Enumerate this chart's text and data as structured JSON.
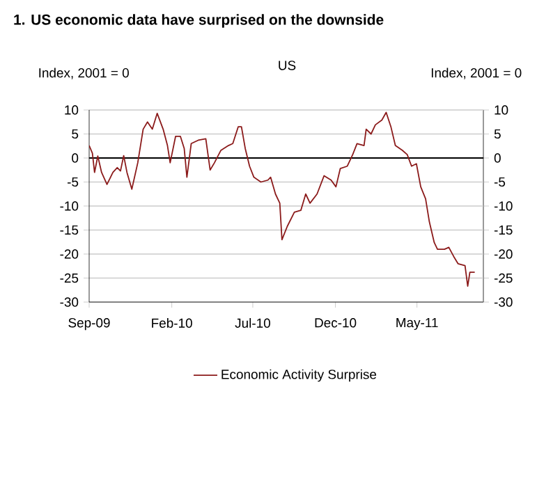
{
  "chart_data": {
    "type": "line",
    "title": "1. US economic data have surprised on the downside",
    "subtitle": "US",
    "ylabel": "Index, 2001 = 0",
    "y2label": "Index, 2001 = 0",
    "x": [
      "2009-09-01",
      "2009-09-07",
      "2009-09-11",
      "2009-09-17",
      "2009-09-24",
      "2009-10-04",
      "2009-10-15",
      "2009-10-23",
      "2009-10-29",
      "2009-11-04",
      "2009-11-10",
      "2009-11-19",
      "2009-11-30",
      "2009-12-10",
      "2009-12-18",
      "2009-12-27",
      "2010-01-05",
      "2010-01-16",
      "2010-01-24",
      "2010-01-29",
      "2010-02-08",
      "2010-02-17",
      "2010-02-24",
      "2010-03-01",
      "2010-03-09",
      "2010-03-22",
      "2010-04-05",
      "2010-04-13",
      "2010-04-21",
      "2010-05-03",
      "2010-05-17",
      "2010-05-25",
      "2010-06-04",
      "2010-06-10",
      "2010-06-17",
      "2010-06-25",
      "2010-07-03",
      "2010-07-16",
      "2010-07-29",
      "2010-08-03",
      "2010-08-12",
      "2010-08-20",
      "2010-08-24",
      "2010-09-03",
      "2010-09-16",
      "2010-09-28",
      "2010-10-07",
      "2010-10-15",
      "2010-10-28",
      "2010-11-10",
      "2010-11-23",
      "2010-12-02",
      "2010-12-10",
      "2010-12-23",
      "2011-01-02",
      "2011-01-10",
      "2011-01-23",
      "2011-01-27",
      "2011-02-05",
      "2011-02-13",
      "2011-02-25",
      "2011-03-05",
      "2011-03-14",
      "2011-03-22",
      "2011-04-04",
      "2011-04-13",
      "2011-04-21",
      "2011-04-30",
      "2011-05-08",
      "2011-05-17",
      "2011-05-24",
      "2011-06-02",
      "2011-06-08",
      "2011-06-21",
      "2011-06-29",
      "2011-07-08",
      "2011-07-16",
      "2011-07-29",
      "2011-08-03",
      "2011-08-07",
      "2011-08-16"
    ],
    "series": [
      {
        "name": "Economic Activity Surprise",
        "color": "#8b1a1a",
        "values": [
          2.6,
          1,
          -3,
          0.4,
          -3,
          -5.5,
          -3,
          -2,
          -2.7,
          0.5,
          -3,
          -6.5,
          -1,
          6,
          7.5,
          6,
          9.3,
          6,
          2.6,
          -1,
          4.5,
          4.5,
          2,
          -4,
          3,
          3.7,
          4,
          -2.5,
          -1,
          1.6,
          2.6,
          3,
          6.5,
          6.5,
          2,
          -1.7,
          -4,
          -5,
          -4.6,
          -4,
          -7.5,
          -9.4,
          -17,
          -14.2,
          -11.3,
          -10.9,
          -7.5,
          -9.4,
          -7.5,
          -3.7,
          -4.6,
          -6,
          -2.2,
          -1.7,
          0.7,
          3,
          2.6,
          6,
          5,
          6.9,
          7.9,
          9.5,
          6.4,
          2.6,
          1.6,
          0.7,
          -1.7,
          -1.2,
          -6,
          -8.5,
          -13.3,
          -17.6,
          -19,
          -19,
          -18.6,
          -20.5,
          -22,
          -22.4,
          -26.7,
          -23.8,
          -23.8
        ]
      }
    ],
    "xlim": [
      "2009-09-01",
      "2011-09-01"
    ],
    "xticks": [
      {
        "value": "2009-09-01",
        "label": "Sep-09"
      },
      {
        "value": "2010-02-01",
        "label": "Feb-10"
      },
      {
        "value": "2010-07-01",
        "label": "Jul-10"
      },
      {
        "value": "2010-12-01",
        "label": "Dec-10"
      },
      {
        "value": "2011-05-01",
        "label": "May-11"
      }
    ],
    "ylim": [
      -30,
      10
    ],
    "yticks": [
      -30,
      -25,
      -20,
      -15,
      -10,
      -5,
      0,
      5,
      10
    ],
    "y2lim": [
      -30,
      10
    ],
    "y2ticks": [
      -30,
      -25,
      -20,
      -15,
      -10,
      -5,
      0,
      5,
      10
    ],
    "ref_lines": [
      {
        "axis": "y",
        "value": 0,
        "color": "#000000"
      }
    ],
    "grid": "y",
    "legend": "bottom",
    "line_style": "solid"
  }
}
